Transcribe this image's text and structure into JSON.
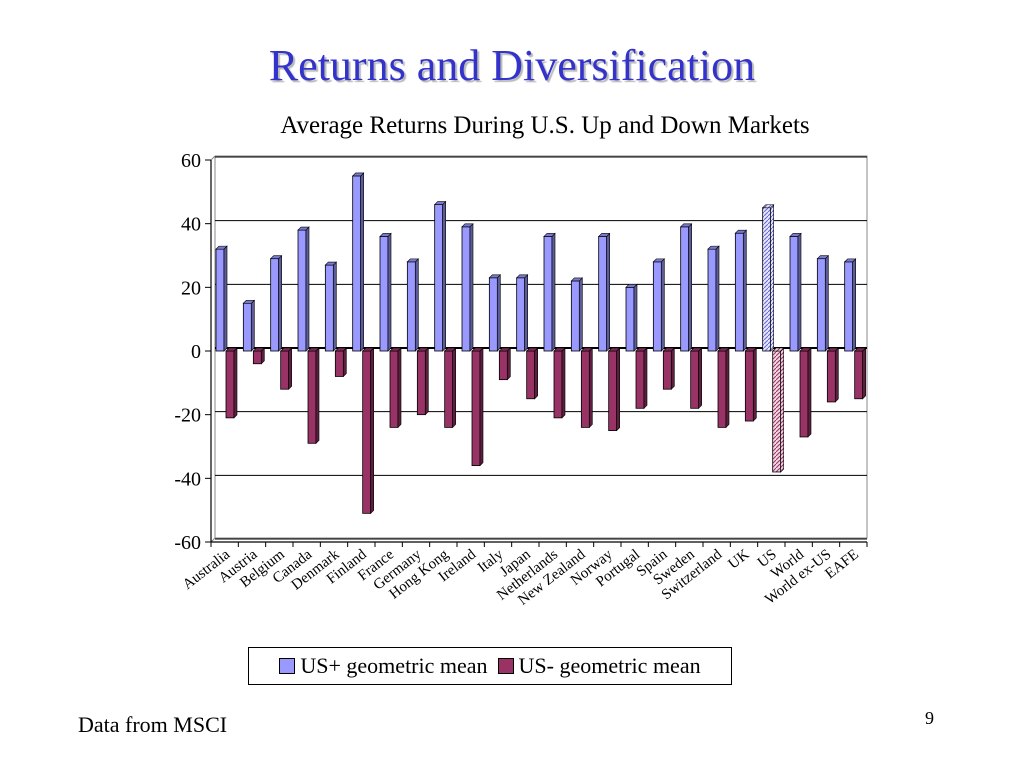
{
  "slide": {
    "title": "Returns and Diversification",
    "source": "Data from MSCI",
    "page_number": "9"
  },
  "colors": {
    "title": "#3333cc",
    "us_up": "#9999ff",
    "us_down": "#993366"
  },
  "chart_data": {
    "type": "bar",
    "title": "Average Returns During U.S. Up and Down Markets",
    "xlabel": "",
    "ylabel": "",
    "ylim": [
      -60,
      60
    ],
    "yticks": [
      60,
      40,
      20,
      0,
      -20,
      -40,
      -60
    ],
    "grid": true,
    "legend_position": "bottom",
    "categories": [
      "Australia",
      "Austria",
      "Belgium",
      "Canada",
      "Denmark",
      "Finland",
      "France",
      "Germany",
      "Hong Kong",
      "Ireland",
      "Italy",
      "Japan",
      "Netherlands",
      "New Zealand",
      "Norway",
      "Portugal",
      "Spain",
      "Sweden",
      "Switzerland",
      "UK",
      "US",
      "World",
      "World ex-US",
      "EAFE"
    ],
    "highlighted_category": "US",
    "series": [
      {
        "name": "US+ geometric mean",
        "values": [
          32,
          15,
          29,
          38,
          27,
          55,
          36,
          28,
          46,
          39,
          23,
          23,
          36,
          22,
          36,
          20,
          28,
          39,
          32,
          37,
          45,
          36,
          29,
          28
        ]
      },
      {
        "name": "US- geometric mean",
        "values": [
          -21,
          -4,
          -12,
          -29,
          -8,
          -51,
          -24,
          -20,
          -24,
          -36,
          -9,
          -15,
          -21,
          -24,
          -25,
          -18,
          -12,
          -18,
          -24,
          -22,
          -38,
          -27,
          -16,
          -15
        ]
      }
    ]
  }
}
